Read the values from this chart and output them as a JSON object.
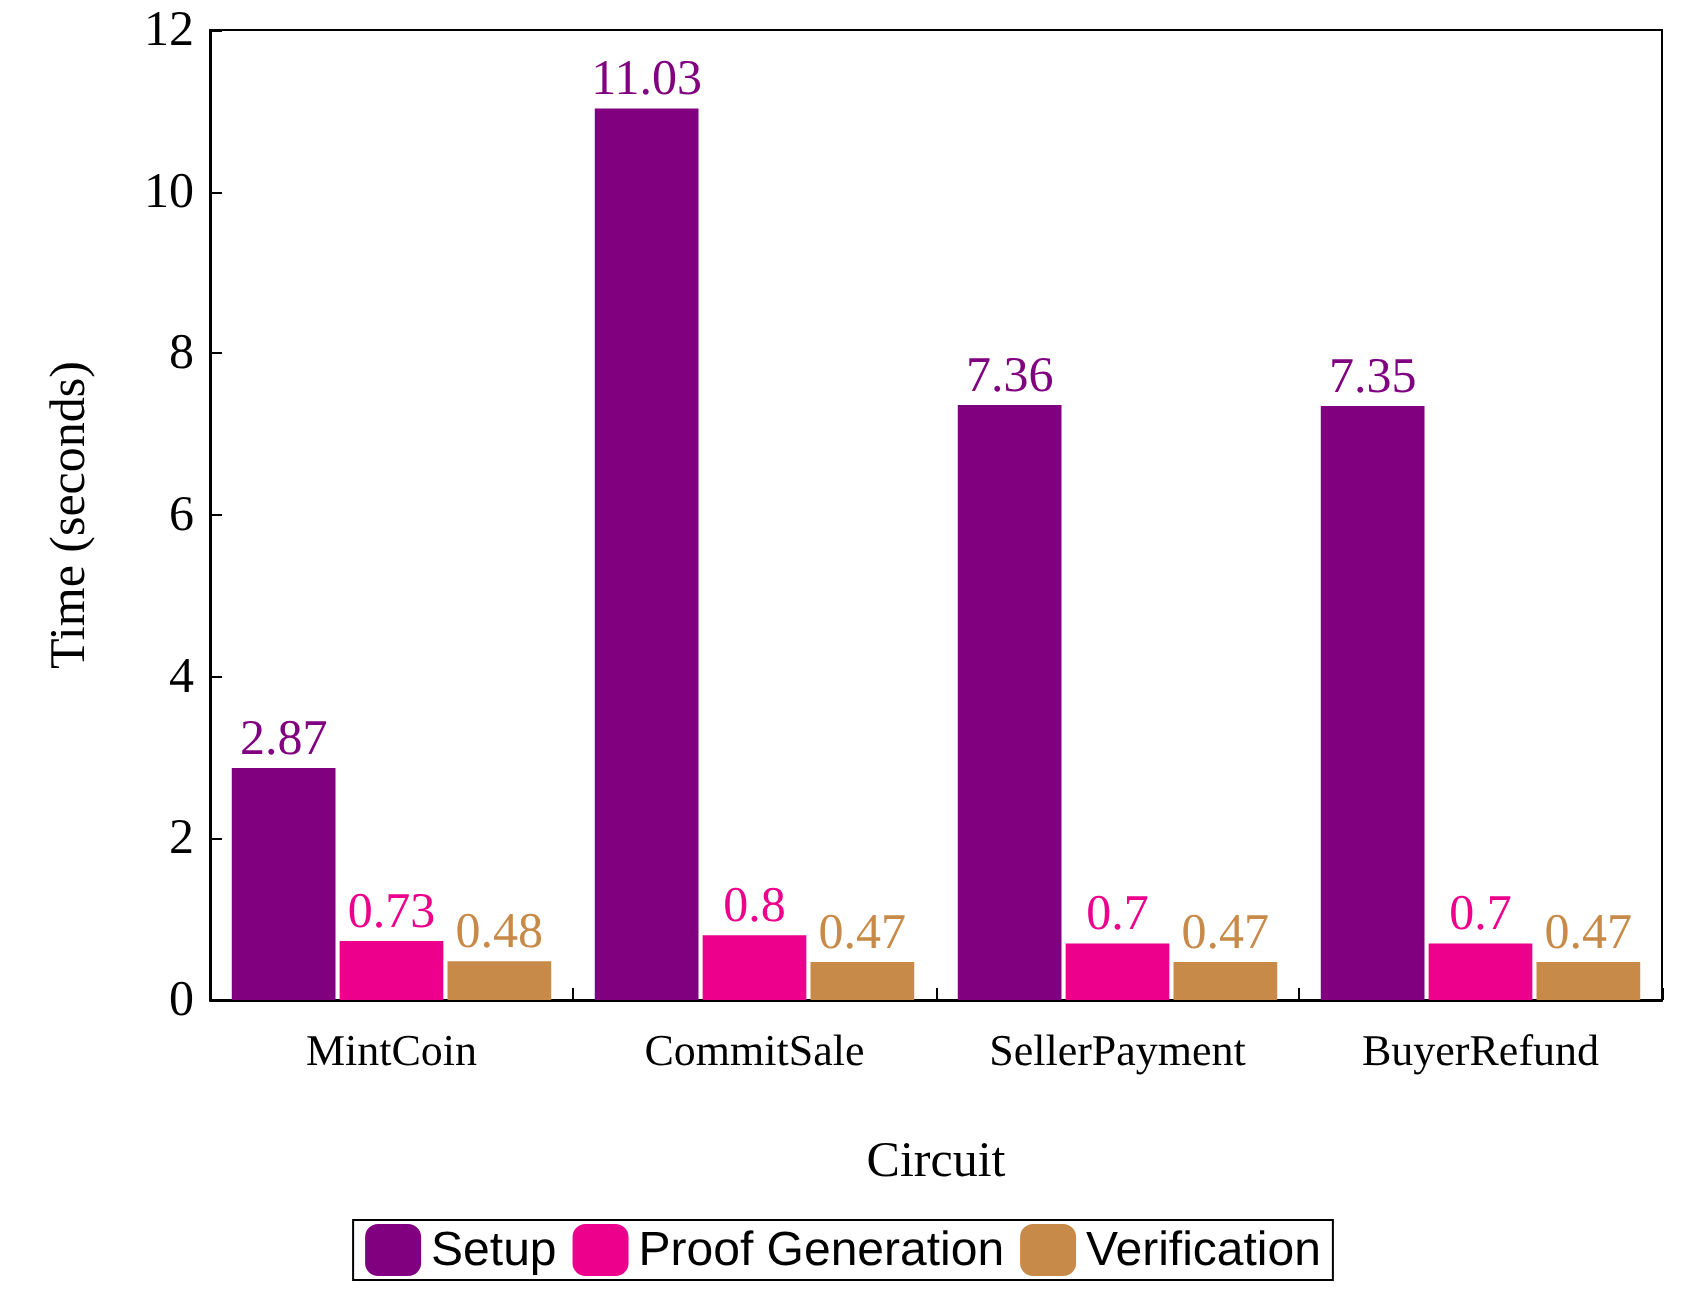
{
  "chart_data": {
    "type": "bar",
    "xlabel": "Circuit",
    "ylabel": "Time (seconds)",
    "categories": [
      "MintCoin",
      "CommitSale",
      "SellerPayment",
      "BuyerRefund"
    ],
    "series": [
      {
        "name": "Setup",
        "color": "#800080",
        "values": [
          2.87,
          11.03,
          7.36,
          7.35
        ]
      },
      {
        "name": "Proof Generation",
        "color": "#ec008c",
        "values": [
          0.73,
          0.8,
          0.7,
          0.7
        ]
      },
      {
        "name": "Verification",
        "color": "#c88a48",
        "values": [
          0.48,
          0.47,
          0.47,
          0.47
        ]
      }
    ],
    "ylim": [
      0,
      12
    ],
    "yticks": [
      0,
      2,
      4,
      6,
      8,
      10,
      12
    ],
    "data_labels": true,
    "legend": "bottom",
    "grid": false
  }
}
